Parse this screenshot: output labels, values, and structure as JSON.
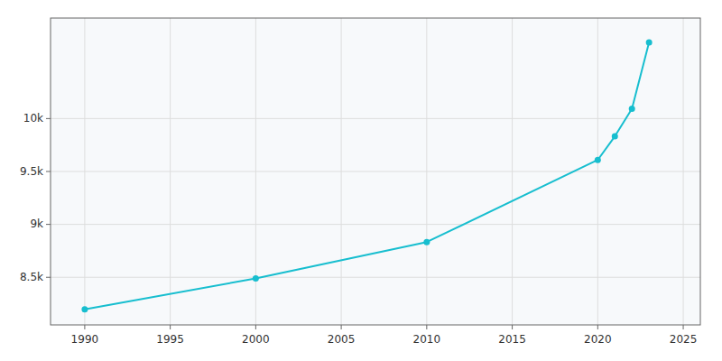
{
  "chart_data": {
    "type": "line",
    "x": [
      1990,
      2000,
      2010,
      2020,
      2021,
      2022,
      2023
    ],
    "values": [
      8197,
      8489,
      8833,
      9609,
      9832,
      10093,
      10720
    ],
    "color": "#17becf",
    "marker": "circle",
    "xlim": [
      1988,
      2026
    ],
    "ylim": [
      8050,
      10950
    ],
    "xticks": [
      1990,
      1995,
      2000,
      2005,
      2010,
      2015,
      2020,
      2025
    ],
    "yticks": [
      {
        "value": 8500,
        "label": "8.5k"
      },
      {
        "value": 9000,
        "label": "9k"
      },
      {
        "value": 9500,
        "label": "9.5k"
      },
      {
        "value": 10000,
        "label": "10k"
      }
    ],
    "grid": true
  }
}
